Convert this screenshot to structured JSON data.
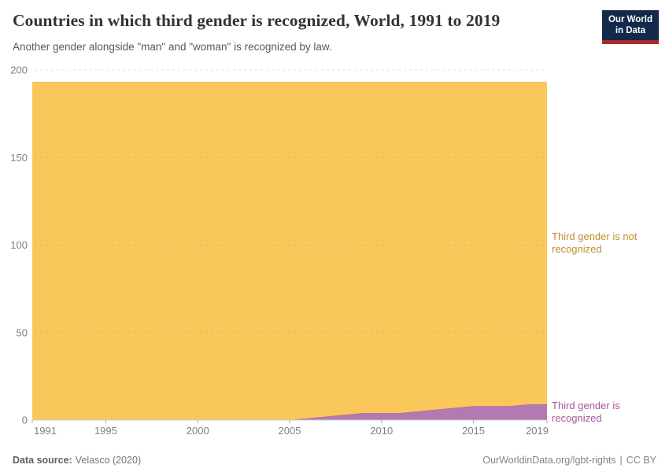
{
  "header": {
    "title": "Countries in which third gender is recognized, World, 1991 to 2019",
    "subtitle": "Another gender alongside \"man\" and \"woman\" is recognized by law.",
    "logo": {
      "line1": "Our World",
      "line2": "in Data",
      "bg_color": "#12294a",
      "accent_color": "#a82c2c"
    }
  },
  "chart_data": {
    "type": "area",
    "stacked": true,
    "title": "Countries in which third gender is recognized, World, 1991 to 2019",
    "x": [
      1991,
      1992,
      1993,
      1994,
      1995,
      1996,
      1997,
      1998,
      1999,
      2000,
      2001,
      2002,
      2003,
      2004,
      2005,
      2006,
      2007,
      2008,
      2009,
      2010,
      2011,
      2012,
      2013,
      2014,
      2015,
      2016,
      2017,
      2018,
      2019
    ],
    "series": [
      {
        "name": "Third gender is recognized",
        "color": "#b279b2",
        "edge_color": "#a1609e",
        "label_color": "#a9569f",
        "values": [
          0,
          0,
          0,
          0,
          0,
          0,
          0,
          0,
          0,
          0,
          0,
          0,
          0,
          0,
          0,
          1,
          2,
          3,
          4,
          4,
          4,
          5,
          6,
          7,
          8,
          8,
          8,
          9,
          9
        ]
      },
      {
        "name": "Third gender is not recognized",
        "color": "#fac85a",
        "edge_color": "#f3bc45",
        "label_color": "#be8e2e",
        "values": [
          193,
          193,
          193,
          193,
          193,
          193,
          193,
          193,
          193,
          193,
          193,
          193,
          193,
          193,
          193,
          192,
          191,
          190,
          189,
          189,
          189,
          188,
          187,
          186,
          185,
          185,
          185,
          184,
          184
        ]
      }
    ],
    "total_countries": 193,
    "ylim": [
      0,
      200
    ],
    "yticks": [
      0,
      50,
      100,
      150,
      200
    ],
    "xticks": [
      1991,
      1995,
      2000,
      2005,
      2010,
      2015,
      2019
    ],
    "grid": "dashed-horizontal",
    "grid_color": "#e2e2e2",
    "axis_color": "#cccccc",
    "tick_label_color": "#808080",
    "legend_position": "right-of-plot"
  },
  "footer": {
    "source_label": "Data source:",
    "source_value": "Velasco (2020)",
    "link": "OurWorldinData.org/lgbt-rights",
    "separator": "|",
    "license": "CC BY"
  }
}
